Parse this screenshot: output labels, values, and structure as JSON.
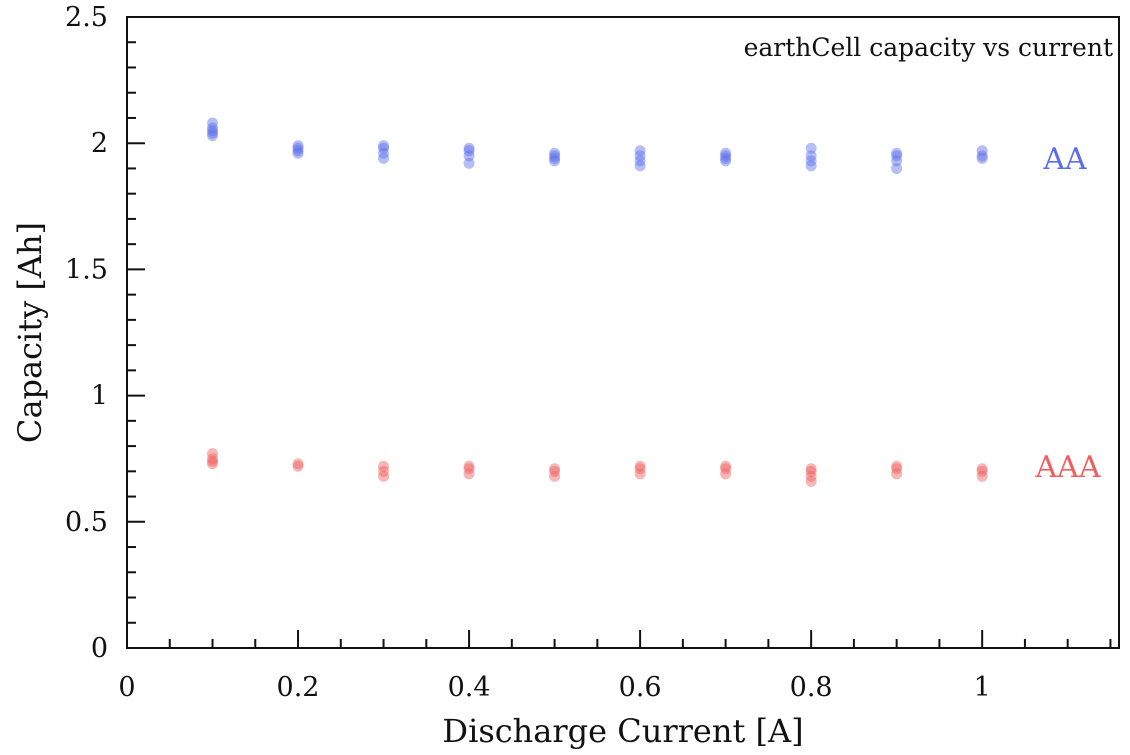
{
  "chart_data": {
    "type": "scatter",
    "title": "earthCell capacity vs current",
    "xlabel": "Discharge Current [A]",
    "ylabel": "Capacity [Ah]",
    "xlim": [
      0,
      1.16
    ],
    "ylim": [
      0,
      2.5
    ],
    "x_ticks": [
      0,
      0.2,
      0.4,
      0.6,
      0.8,
      1
    ],
    "x_tick_labels": [
      "0",
      "0.2",
      "0.4",
      "0.6",
      "0.8",
      "1"
    ],
    "y_ticks": [
      0,
      0.5,
      1,
      1.5,
      2,
      2.5
    ],
    "y_tick_labels": [
      "0",
      "0.5",
      "1",
      "1.5",
      "2",
      "2.5"
    ],
    "grid": false,
    "series": [
      {
        "name": "AA",
        "color": "#5a6ee8",
        "points": [
          [
            0.1,
            2.08
          ],
          [
            0.1,
            2.06
          ],
          [
            0.1,
            2.05
          ],
          [
            0.1,
            2.04
          ],
          [
            0.1,
            2.03
          ],
          [
            0.2,
            1.99
          ],
          [
            0.2,
            1.98
          ],
          [
            0.2,
            1.97
          ],
          [
            0.2,
            1.96
          ],
          [
            0.3,
            1.99
          ],
          [
            0.3,
            1.98
          ],
          [
            0.3,
            1.96
          ],
          [
            0.3,
            1.94
          ],
          [
            0.4,
            1.98
          ],
          [
            0.4,
            1.97
          ],
          [
            0.4,
            1.95
          ],
          [
            0.4,
            1.92
          ],
          [
            0.5,
            1.96
          ],
          [
            0.5,
            1.95
          ],
          [
            0.5,
            1.94
          ],
          [
            0.5,
            1.93
          ],
          [
            0.6,
            1.97
          ],
          [
            0.6,
            1.95
          ],
          [
            0.6,
            1.93
          ],
          [
            0.6,
            1.91
          ],
          [
            0.7,
            1.96
          ],
          [
            0.7,
            1.95
          ],
          [
            0.7,
            1.94
          ],
          [
            0.7,
            1.93
          ],
          [
            0.8,
            1.98
          ],
          [
            0.8,
            1.95
          ],
          [
            0.8,
            1.93
          ],
          [
            0.8,
            1.91
          ],
          [
            0.9,
            1.96
          ],
          [
            0.9,
            1.95
          ],
          [
            0.9,
            1.93
          ],
          [
            0.9,
            1.9
          ],
          [
            1.0,
            1.97
          ],
          [
            1.0,
            1.95
          ],
          [
            1.0,
            1.94
          ]
        ],
        "label": "AA"
      },
      {
        "name": "AAA",
        "color": "#ee6060",
        "points": [
          [
            0.1,
            0.77
          ],
          [
            0.1,
            0.75
          ],
          [
            0.1,
            0.74
          ],
          [
            0.1,
            0.73
          ],
          [
            0.2,
            0.73
          ],
          [
            0.2,
            0.72
          ],
          [
            0.3,
            0.72
          ],
          [
            0.3,
            0.7
          ],
          [
            0.3,
            0.68
          ],
          [
            0.4,
            0.72
          ],
          [
            0.4,
            0.71
          ],
          [
            0.4,
            0.69
          ],
          [
            0.5,
            0.71
          ],
          [
            0.5,
            0.7
          ],
          [
            0.5,
            0.68
          ],
          [
            0.6,
            0.72
          ],
          [
            0.6,
            0.71
          ],
          [
            0.6,
            0.69
          ],
          [
            0.7,
            0.72
          ],
          [
            0.7,
            0.71
          ],
          [
            0.7,
            0.69
          ],
          [
            0.8,
            0.71
          ],
          [
            0.8,
            0.7
          ],
          [
            0.8,
            0.68
          ],
          [
            0.8,
            0.66
          ],
          [
            0.9,
            0.72
          ],
          [
            0.9,
            0.71
          ],
          [
            0.9,
            0.69
          ],
          [
            1.0,
            0.71
          ],
          [
            1.0,
            0.7
          ],
          [
            1.0,
            0.68
          ]
        ],
        "label": "AAA"
      }
    ]
  }
}
